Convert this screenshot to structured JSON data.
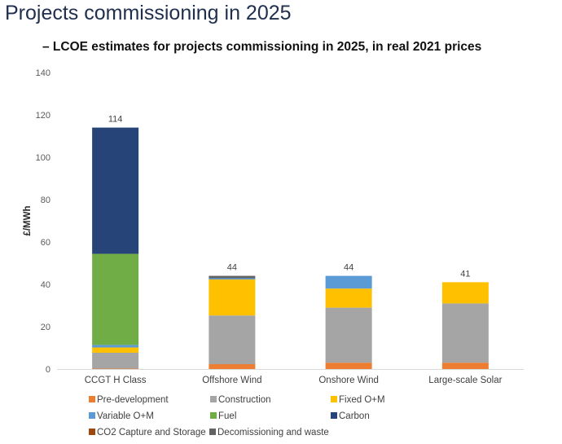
{
  "page": {
    "title": "Projects commissioning in 2025",
    "subtitle": "– LCOE estimates for projects commissioning in 2025, in real 2021 prices"
  },
  "chart_data": {
    "type": "bar",
    "stacked": true,
    "title": "LCOE estimates for projects commissioning in 2025, in real 2021 prices",
    "xlabel": "",
    "ylabel": "£/MWh",
    "ylim": [
      0,
      140
    ],
    "yticks": [
      0,
      20,
      40,
      60,
      80,
      100,
      120,
      140
    ],
    "grid": false,
    "legend_position": "bottom",
    "categories": [
      "CCGT H Class",
      "Offshore Wind",
      "Onshore Wind",
      "Large-scale Solar"
    ],
    "totals": [
      114,
      44,
      44,
      41
    ],
    "series": [
      {
        "name": "Pre-development",
        "color": "#ed7d31",
        "values": [
          0.2,
          2.3,
          3.0,
          3.0
        ]
      },
      {
        "name": "Construction",
        "color": "#a5a5a5",
        "values": [
          7.5,
          23.0,
          26.0,
          28.0
        ]
      },
      {
        "name": "Fixed O+M",
        "color": "#ffc000",
        "values": [
          2.5,
          17.0,
          9.0,
          10.0
        ]
      },
      {
        "name": "Variable O+M",
        "color": "#5b9bd5",
        "values": [
          1.2,
          0.6,
          6.0,
          0
        ]
      },
      {
        "name": "Fuel",
        "color": "#70ad47",
        "values": [
          43.0,
          0,
          0,
          0
        ]
      },
      {
        "name": "Carbon",
        "color": "#264478",
        "values": [
          59.6,
          0,
          0,
          0
        ]
      },
      {
        "name": "CO2 Capture and Storage",
        "color": "#9e480e",
        "values": [
          0,
          0,
          0,
          0
        ]
      },
      {
        "name": "Decomissioning and waste",
        "color": "#636363",
        "values": [
          0,
          1.1,
          0,
          0
        ]
      }
    ]
  }
}
